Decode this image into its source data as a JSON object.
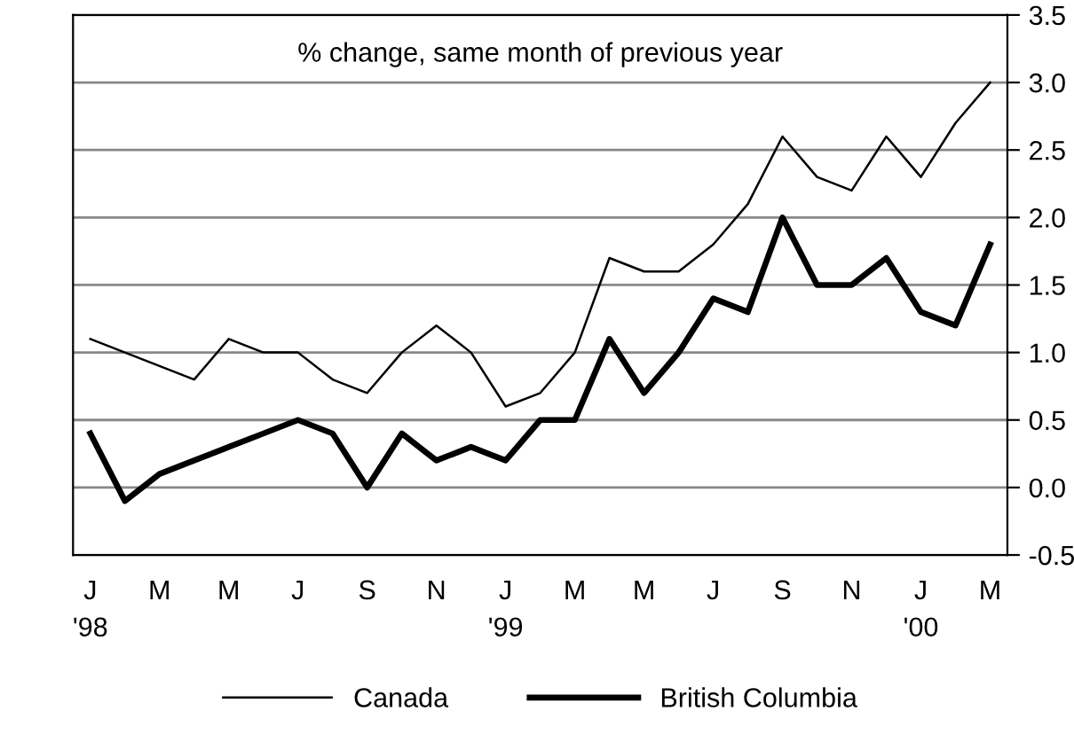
{
  "chart_data": {
    "type": "line",
    "title": "% change, same month of previous year",
    "categories": [
      "J\n'98",
      null,
      "M",
      null,
      "M",
      null,
      "J",
      null,
      "S",
      null,
      "N",
      null,
      "J\n'99",
      null,
      "M",
      null,
      "M",
      null,
      "J",
      null,
      "S",
      null,
      "N",
      null,
      "J\n'00",
      null,
      "M"
    ],
    "series": [
      {
        "name": "Canada",
        "color": "#000000",
        "values": [
          1.1,
          1.0,
          0.9,
          0.8,
          1.1,
          1.0,
          1.0,
          0.8,
          0.7,
          1.0,
          1.2,
          1.0,
          0.6,
          0.7,
          1.0,
          1.7,
          1.6,
          1.6,
          1.8,
          2.1,
          2.6,
          2.3,
          2.2,
          2.6,
          2.3,
          2.7,
          3.0
        ]
      },
      {
        "name": "British Columbia",
        "color": "#000000",
        "values": [
          0.4,
          -0.1,
          0.1,
          0.2,
          0.3,
          0.4,
          0.5,
          0.4,
          0.0,
          0.4,
          0.2,
          0.3,
          0.2,
          0.5,
          0.5,
          1.1,
          0.7,
          1.0,
          1.4,
          1.3,
          2.0,
          1.5,
          1.5,
          1.7,
          1.3,
          1.2,
          1.8
        ]
      }
    ],
    "ylim": [
      -0.5,
      3.5
    ],
    "yticks": [
      {
        "value": -0.5,
        "label": "-0.5"
      },
      {
        "value": 0,
        "label": "0.0"
      },
      0.5,
      {
        "value": 1,
        "label": "1.0"
      },
      1.5,
      {
        "value": 2,
        "label": "2.0"
      },
      2.5,
      {
        "value": 3,
        "label": "3.0"
      },
      3.5
    ],
    "grid": "y",
    "legend": "bottom",
    "marker": "none",
    "line_style": "solid"
  }
}
